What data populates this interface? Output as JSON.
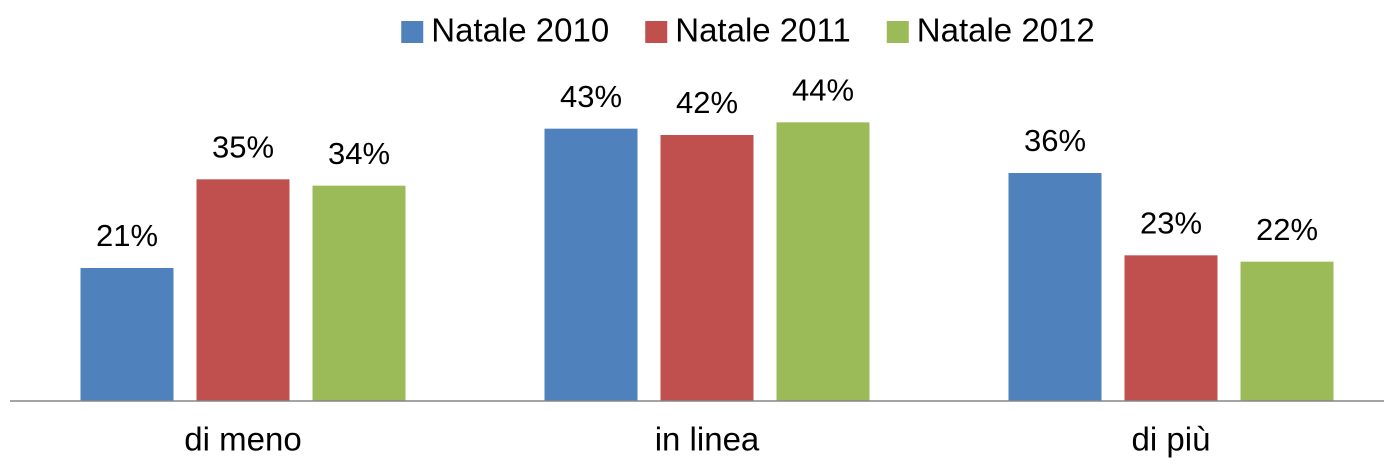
{
  "chart_data": {
    "type": "bar",
    "categories": [
      "di meno",
      "in linea",
      "di più"
    ],
    "series": [
      {
        "name": "Natale 2010",
        "color": "#4f81bd",
        "values": [
          21,
          43,
          36
        ],
        "value_labels": [
          "21%",
          "43%",
          "36%"
        ]
      },
      {
        "name": "Natale 2011",
        "color": "#c0504d",
        "values": [
          35,
          42,
          23
        ],
        "value_labels": [
          "35%",
          "42%",
          "23%"
        ]
      },
      {
        "name": "Natale 2012",
        "color": "#9bbb59",
        "values": [
          34,
          44,
          22
        ],
        "value_labels": [
          "34%",
          "44%",
          "22%"
        ]
      }
    ],
    "ylim": [
      0,
      60
    ],
    "legend": "top"
  }
}
